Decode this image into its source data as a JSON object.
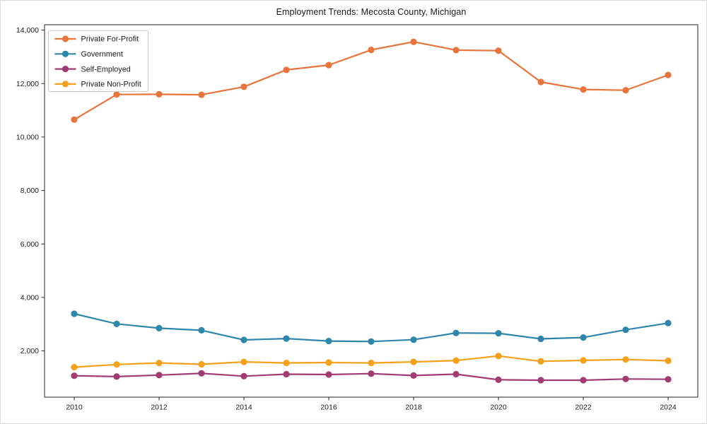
{
  "chart_data": {
    "type": "line",
    "title": "Employment Trends: Mecosta County, Michigan",
    "xlabel": "",
    "ylabel": "",
    "x": [
      2010,
      2011,
      2012,
      2013,
      2014,
      2015,
      2016,
      2017,
      2018,
      2019,
      2020,
      2021,
      2022,
      2023,
      2024
    ],
    "series": [
      {
        "name": "Private For-Profit",
        "color": "#e8743b",
        "values": [
          10650,
          11590,
          11600,
          11580,
          11880,
          12510,
          12690,
          13260,
          13560,
          13250,
          13230,
          12060,
          11780,
          11750,
          12320
        ]
      },
      {
        "name": "Government",
        "color": "#2e86ab",
        "values": [
          3390,
          3010,
          2850,
          2770,
          2410,
          2460,
          2370,
          2350,
          2420,
          2670,
          2660,
          2450,
          2500,
          2790,
          3040
        ]
      },
      {
        "name": "Self-Employed",
        "color": "#a23b72",
        "values": [
          1070,
          1040,
          1095,
          1160,
          1055,
          1130,
          1115,
          1150,
          1080,
          1130,
          920,
          905,
          905,
          950,
          940
        ]
      },
      {
        "name": "Private Non-Profit",
        "color": "#f5a01b",
        "values": [
          1390,
          1490,
          1550,
          1500,
          1590,
          1550,
          1565,
          1550,
          1590,
          1640,
          1810,
          1610,
          1645,
          1680,
          1630
        ]
      }
    ],
    "xlim": [
      2009.3,
      2024.7
    ],
    "ylim": [
      270,
      14200
    ],
    "xticks": [
      2010,
      2012,
      2014,
      2016,
      2018,
      2020,
      2022,
      2024
    ],
    "xtick_labels": [
      "2010",
      "2012",
      "2014",
      "2016",
      "2018",
      "2020",
      "2022",
      "2024"
    ],
    "yticks": [
      2000,
      4000,
      6000,
      8000,
      10000,
      12000,
      14000
    ],
    "ytick_labels": [
      "2,000",
      "4,000",
      "6,000",
      "8,000",
      "10,000",
      "12,000",
      "14,000"
    ],
    "legend_position": "upper left",
    "grid": false,
    "marker": "circle",
    "spine_color": "#262626",
    "legend_border_color": "#cccccc",
    "background_color": "#ffffff"
  }
}
